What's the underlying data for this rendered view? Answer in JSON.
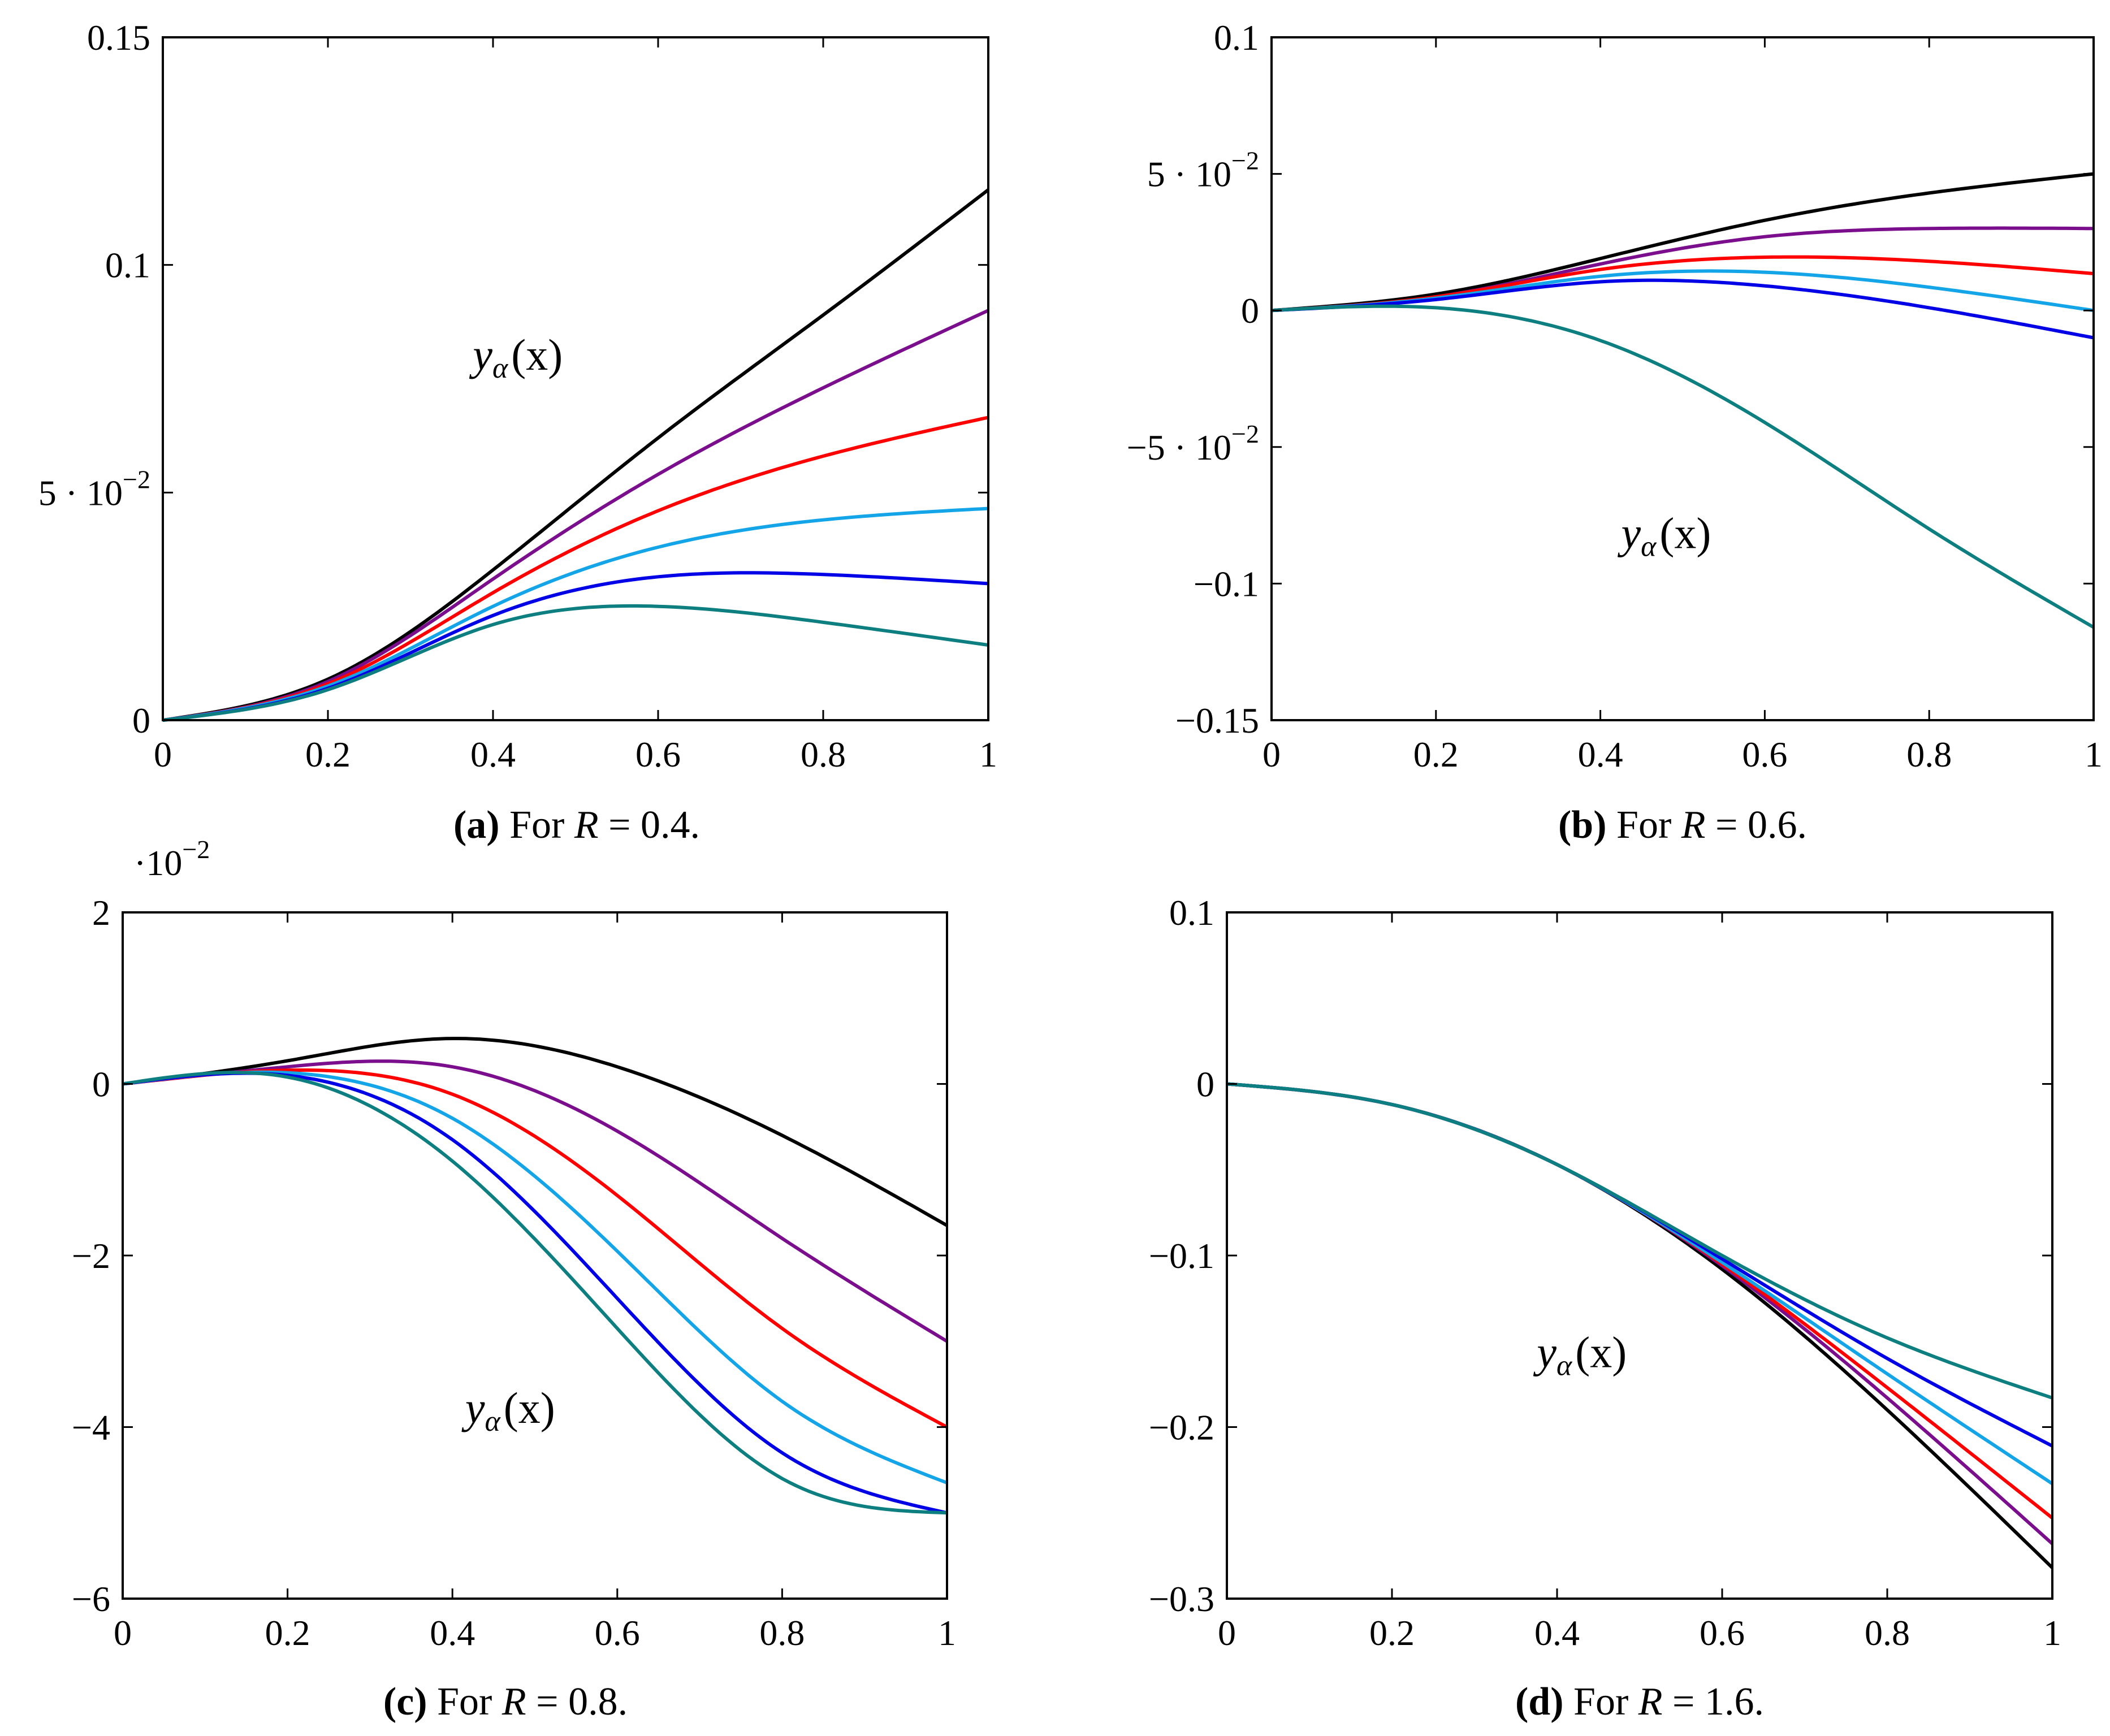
{
  "chart_data": [
    {
      "type": "line",
      "id": "a",
      "xlim": [
        0,
        1
      ],
      "ylim": [
        0,
        0.15
      ],
      "x": [
        0,
        0.2,
        0.4,
        0.6,
        0.8,
        1.0
      ],
      "xticks": [
        "0",
        "0.2",
        "0.4",
        "0.6",
        "0.8",
        "1"
      ],
      "yticks": [
        {
          "v": 0,
          "text": "0"
        },
        {
          "v": 0.05,
          "text": "5 · 10",
          "exp": "−2"
        },
        {
          "v": 0.1,
          "text": "0.1"
        },
        {
          "v": 0.15,
          "text": "0.15"
        }
      ],
      "multiplier": null,
      "annotation": {
        "text": "y",
        "sub": "α",
        "rest": "(x)",
        "x": 0.43,
        "y": 0.077
      },
      "caption": {
        "letter": "(a)",
        "text": "For ",
        "var": "R",
        "rest": " = 0.4."
      },
      "series": [
        {
          "name": "black",
          "color": "#000000",
          "values": [
            0,
            0.009,
            0.033,
            0.062,
            0.089,
            0.1165
          ]
        },
        {
          "name": "purple",
          "color": "#7b0e8c",
          "values": [
            0,
            0.0085,
            0.031,
            0.054,
            0.073,
            0.09
          ]
        },
        {
          "name": "red",
          "color": "#ff0000",
          "values": [
            0,
            0.008,
            0.028,
            0.046,
            0.058,
            0.0665
          ]
        },
        {
          "name": "cyan",
          "color": "#14a5e8",
          "values": [
            0,
            0.0075,
            0.025,
            0.038,
            0.044,
            0.0465
          ]
        },
        {
          "name": "blue",
          "color": "#0000e6",
          "values": [
            0,
            0.007,
            0.023,
            0.0315,
            0.032,
            0.03
          ]
        },
        {
          "name": "teal",
          "color": "#0e7f80",
          "values": [
            0,
            0.0067,
            0.021,
            0.025,
            0.0215,
            0.0165
          ]
        }
      ]
    },
    {
      "type": "line",
      "id": "b",
      "xlim": [
        0,
        1
      ],
      "ylim": [
        -0.15,
        0.1
      ],
      "x": [
        0,
        0.2,
        0.4,
        0.6,
        0.8,
        1.0
      ],
      "xticks": [
        "0",
        "0.2",
        "0.4",
        "0.6",
        "0.8",
        "1"
      ],
      "yticks": [
        {
          "v": -0.15,
          "text": "−0.15"
        },
        {
          "v": -0.1,
          "text": "−0.1"
        },
        {
          "v": -0.05,
          "text": "−5 · 10",
          "exp": "−2"
        },
        {
          "v": 0,
          "text": "0"
        },
        {
          "v": 0.05,
          "text": "5 · 10",
          "exp": "−2"
        },
        {
          "v": 0.1,
          "text": "0.1"
        }
      ],
      "multiplier": null,
      "annotation": {
        "text": "y",
        "sub": "α",
        "rest": "(x)",
        "x": 0.48,
        "y": -0.087
      },
      "caption": {
        "letter": "(b)",
        "text": "For ",
        "var": "R",
        "rest": " = 0.6."
      },
      "series": [
        {
          "name": "black",
          "color": "#000000",
          "values": [
            0,
            0.006,
            0.019,
            0.033,
            0.043,
            0.05
          ]
        },
        {
          "name": "purple",
          "color": "#7b0e8c",
          "values": [
            0,
            0.005,
            0.017,
            0.027,
            0.03,
            0.03
          ]
        },
        {
          "name": "red",
          "color": "#ff0000",
          "values": [
            0,
            0.005,
            0.015,
            0.0195,
            0.018,
            0.0135
          ]
        },
        {
          "name": "cyan",
          "color": "#14a5e8",
          "values": [
            0,
            0.0045,
            0.0125,
            0.014,
            0.0085,
            0.0
          ]
        },
        {
          "name": "blue",
          "color": "#0000e6",
          "values": [
            0,
            0.004,
            0.0105,
            0.009,
            0.001,
            -0.01
          ]
        },
        {
          "name": "teal",
          "color": "#0e7f80",
          "values": [
            0,
            0.001,
            -0.011,
            -0.041,
            -0.08,
            -0.116
          ]
        }
      ]
    },
    {
      "type": "line",
      "id": "c",
      "xlim": [
        0,
        1
      ],
      "ylim": [
        -6,
        2
      ],
      "x": [
        0,
        0.2,
        0.4,
        0.6,
        0.8,
        1.0
      ],
      "xticks": [
        "0",
        "0.2",
        "0.4",
        "0.6",
        "0.8",
        "1"
      ],
      "yticks": [
        {
          "v": -6,
          "text": "−6"
        },
        {
          "v": -4,
          "text": "−4"
        },
        {
          "v": -2,
          "text": "−2"
        },
        {
          "v": 0,
          "text": "0"
        },
        {
          "v": 2,
          "text": "2"
        }
      ],
      "multiplier": {
        "text": "·10",
        "exp": "−2"
      },
      "annotation": {
        "text": "y",
        "sub": "α",
        "rest": "(x)",
        "x": 0.47,
        "y": -3.95
      },
      "caption": {
        "letter": "(c)",
        "text": "For ",
        "var": "R",
        "rest": " = 0.8."
      },
      "series": [
        {
          "name": "black",
          "color": "#000000",
          "values": [
            0,
            0.27,
            0.53,
            0.2,
            -0.6,
            -1.65
          ]
        },
        {
          "name": "purple",
          "color": "#7b0e8c",
          "values": [
            0,
            0.2,
            0.2,
            -0.55,
            -1.8,
            -3.0
          ]
        },
        {
          "name": "red",
          "color": "#ff0000",
          "values": [
            0,
            0.16,
            -0.12,
            -1.3,
            -2.85,
            -4.0
          ]
        },
        {
          "name": "cyan",
          "color": "#14a5e8",
          "values": [
            0,
            0.13,
            -0.4,
            -1.95,
            -3.7,
            -4.65
          ]
        },
        {
          "name": "blue",
          "color": "#0000e6",
          "values": [
            0,
            0.1,
            -0.65,
            -2.5,
            -4.3,
            -5.0
          ]
        },
        {
          "name": "teal",
          "color": "#0e7f80",
          "values": [
            0,
            0.08,
            -0.9,
            -2.85,
            -4.6,
            -5.0
          ]
        }
      ]
    },
    {
      "type": "line",
      "id": "d",
      "xlim": [
        0,
        1
      ],
      "ylim": [
        -0.3,
        0.1
      ],
      "x": [
        0,
        0.2,
        0.4,
        0.6,
        0.8,
        1.0
      ],
      "xticks": [
        "0",
        "0.2",
        "0.4",
        "0.6",
        "0.8",
        "1"
      ],
      "yticks": [
        {
          "v": -0.3,
          "text": "−0.3"
        },
        {
          "v": -0.2,
          "text": "−0.2"
        },
        {
          "v": -0.1,
          "text": "−0.1"
        },
        {
          "v": 0,
          "text": "0"
        },
        {
          "v": 0.1,
          "text": "0.1"
        }
      ],
      "multiplier": null,
      "annotation": {
        "text": "y",
        "sub": "α",
        "rest": "(x)",
        "x": 0.43,
        "y": -0.165
      },
      "caption": {
        "letter": "(d)",
        "text": " For ",
        "var": "R",
        "rest": " = 1.6."
      },
      "series": [
        {
          "name": "black",
          "color": "#000000",
          "values": [
            0,
            -0.012,
            -0.047,
            -0.108,
            -0.19,
            -0.282
          ]
        },
        {
          "name": "purple",
          "color": "#7b0e8c",
          "values": [
            0,
            -0.012,
            -0.047,
            -0.106,
            -0.183,
            -0.268
          ]
        },
        {
          "name": "red",
          "color": "#ff0000",
          "values": [
            0,
            -0.012,
            -0.047,
            -0.105,
            -0.177,
            -0.253
          ]
        },
        {
          "name": "cyan",
          "color": "#14a5e8",
          "values": [
            0,
            -0.012,
            -0.047,
            -0.104,
            -0.169,
            -0.233
          ]
        },
        {
          "name": "blue",
          "color": "#0000e6",
          "values": [
            0,
            -0.012,
            -0.047,
            -0.102,
            -0.16,
            -0.211
          ]
        },
        {
          "name": "teal",
          "color": "#0e7f80",
          "values": [
            0,
            -0.012,
            -0.047,
            -0.1,
            -0.148,
            -0.183
          ]
        }
      ]
    }
  ]
}
